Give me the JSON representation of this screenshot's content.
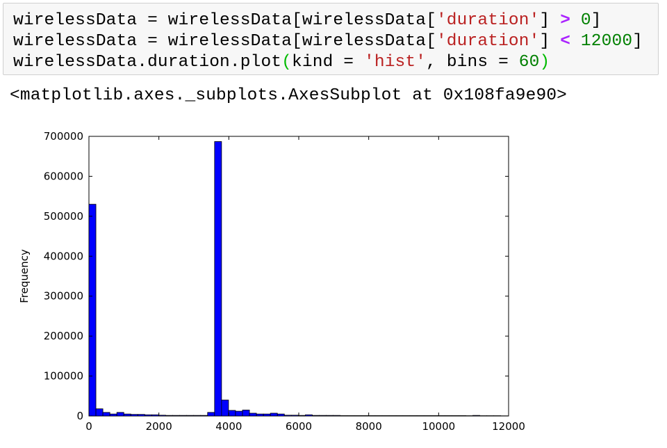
{
  "code_cell": {
    "lines": [
      [
        {
          "text": "wirelessData = wirelessData[wirelessData[",
          "cls": ""
        },
        {
          "text": "'duration'",
          "cls": "tok-str"
        },
        {
          "text": "] ",
          "cls": ""
        },
        {
          "text": ">",
          "cls": "tok-op"
        },
        {
          "text": " ",
          "cls": ""
        },
        {
          "text": "0",
          "cls": "tok-num"
        },
        {
          "text": "]",
          "cls": ""
        }
      ],
      [
        {
          "text": "wirelessData = wirelessData[wirelessData[",
          "cls": ""
        },
        {
          "text": "'duration'",
          "cls": "tok-str"
        },
        {
          "text": "] ",
          "cls": ""
        },
        {
          "text": "<",
          "cls": "tok-op"
        },
        {
          "text": " ",
          "cls": ""
        },
        {
          "text": "12000",
          "cls": "tok-num"
        },
        {
          "text": "]",
          "cls": ""
        }
      ],
      [
        {
          "text": "wirelessData.duration.plot",
          "cls": ""
        },
        {
          "text": "(",
          "cls": "tok-paren"
        },
        {
          "text": "kind = ",
          "cls": ""
        },
        {
          "text": "'hist'",
          "cls": "tok-str"
        },
        {
          "text": ", bins = ",
          "cls": ""
        },
        {
          "text": "60",
          "cls": "tok-num"
        },
        {
          "text": ")",
          "cls": "tok-paren"
        }
      ]
    ]
  },
  "output": {
    "text": "<matplotlib.axes._subplots.AxesSubplot at 0x108fa9e90>"
  },
  "chart_data": {
    "type": "bar",
    "title": "",
    "xlabel": "",
    "ylabel": "Frequency",
    "xlim": [
      0,
      12000
    ],
    "ylim": [
      0,
      700000
    ],
    "xticks": [
      0,
      2000,
      4000,
      6000,
      8000,
      10000,
      12000
    ],
    "yticks": [
      0,
      100000,
      200000,
      300000,
      400000,
      500000,
      600000,
      700000
    ],
    "grid": false,
    "bar_color": "#0000ff",
    "bins": 60,
    "bin_range": [
      0,
      11975
    ],
    "values": [
      530000,
      18000,
      9000,
      5000,
      9000,
      5000,
      4000,
      4000,
      3000,
      3000,
      2000,
      1500,
      1500,
      1500,
      1500,
      1500,
      1500,
      9000,
      687000,
      40000,
      14000,
      12000,
      15000,
      7000,
      5000,
      5000,
      7000,
      5000,
      2000,
      2000,
      1500,
      3000,
      1500,
      1500,
      1500,
      1500,
      1000,
      1000,
      1000,
      1000,
      1000,
      1000,
      1000,
      1000,
      1000,
      1000,
      1000,
      1000,
      1000,
      1000,
      1000,
      1000,
      1000,
      1000,
      800,
      1500,
      800,
      800,
      800,
      500
    ]
  }
}
